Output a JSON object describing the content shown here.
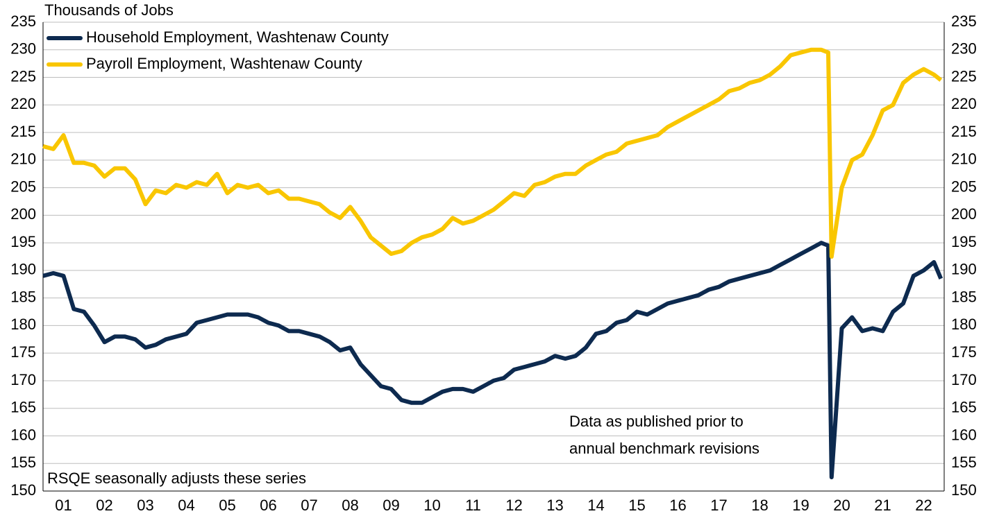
{
  "chart_data": {
    "type": "line",
    "y_label": "Thousands of Jobs",
    "annotations": [
      "RSQE seasonally adjusts these series",
      [
        "Data as published prior to",
        "annual benchmark revisions"
      ]
    ],
    "x": [
      2001.0,
      2001.25,
      2001.5,
      2001.75,
      2002.0,
      2002.25,
      2002.5,
      2002.75,
      2003.0,
      2003.25,
      2003.5,
      2003.75,
      2004.0,
      2004.25,
      2004.5,
      2004.75,
      2005.0,
      2005.25,
      2005.5,
      2005.75,
      2006.0,
      2006.25,
      2006.5,
      2006.75,
      2007.0,
      2007.25,
      2007.5,
      2007.75,
      2008.0,
      2008.25,
      2008.5,
      2008.75,
      2009.0,
      2009.25,
      2009.5,
      2009.75,
      2010.0,
      2010.25,
      2010.5,
      2010.75,
      2011.0,
      2011.25,
      2011.5,
      2011.75,
      2012.0,
      2012.25,
      2012.5,
      2012.75,
      2013.0,
      2013.25,
      2013.5,
      2013.75,
      2014.0,
      2014.25,
      2014.5,
      2014.75,
      2015.0,
      2015.25,
      2015.5,
      2015.75,
      2016.0,
      2016.25,
      2016.5,
      2016.75,
      2017.0,
      2017.25,
      2017.5,
      2017.75,
      2018.0,
      2018.25,
      2018.5,
      2018.75,
      2019.0,
      2019.25,
      2019.5,
      2019.75,
      2020.0,
      2020.17,
      2020.25,
      2020.5,
      2020.75,
      2021.0,
      2021.25,
      2021.5,
      2021.75,
      2022.0,
      2022.25,
      2022.5,
      2022.75,
      2022.92
    ],
    "series": [
      {
        "name": "Household Employment, Washtenaw County",
        "color": "#0d2a4f",
        "values": [
          189,
          189.5,
          189,
          183,
          182.5,
          180,
          177,
          178,
          178,
          177.5,
          176,
          176.5,
          177.5,
          178,
          178.5,
          180.5,
          181,
          181.5,
          182,
          182,
          182,
          181.5,
          180.5,
          180,
          179,
          179,
          178.5,
          178,
          177,
          175.5,
          176,
          173,
          171,
          169,
          168.5,
          166.5,
          166,
          166,
          167,
          168,
          168.5,
          168.5,
          168,
          169,
          170,
          170.5,
          172,
          172.5,
          173,
          173.5,
          174.5,
          174,
          174.5,
          176,
          178.5,
          179,
          180.5,
          181,
          182.5,
          182,
          183,
          184,
          184.5,
          185,
          185.5,
          186.5,
          187,
          188,
          188.5,
          189,
          189.5,
          190,
          191,
          192,
          193,
          194,
          195,
          194.5,
          152.5,
          179.5,
          181.5,
          179,
          179.5,
          179,
          182.5,
          184,
          189,
          190,
          191.5,
          188.5
        ]
      },
      {
        "name": "Payroll Employment, Washtenaw County",
        "color": "#f9c600",
        "values": [
          212.5,
          212,
          214.5,
          209.5,
          209.5,
          209,
          207,
          208.5,
          208.5,
          206.5,
          202,
          204.5,
          204,
          205.5,
          205,
          206,
          205.5,
          207.5,
          204,
          205.5,
          205,
          205.5,
          204,
          204.5,
          203,
          203,
          202.5,
          202,
          200.5,
          199.5,
          201.5,
          199,
          196,
          194.5,
          193,
          193.5,
          195,
          196,
          196.5,
          197.5,
          199.5,
          198.5,
          199,
          200,
          201,
          202.5,
          204,
          203.5,
          205.5,
          206,
          207,
          207.5,
          207.5,
          209,
          210,
          211,
          211.5,
          213,
          213.5,
          214,
          214.5,
          216,
          217,
          218,
          219,
          220,
          221,
          222.5,
          223,
          224,
          224.5,
          225.5,
          227,
          229,
          229.5,
          230,
          230,
          229.5,
          192.5,
          205,
          210,
          211,
          214.5,
          219,
          220,
          224,
          225.5,
          226.5,
          225.5,
          224.5
        ]
      }
    ],
    "xlim": [
      2001,
      2023
    ],
    "xticks": [
      {
        "value": 2001.5,
        "label": "01"
      },
      {
        "value": 2002.5,
        "label": "02"
      },
      {
        "value": 2003.5,
        "label": "03"
      },
      {
        "value": 2004.5,
        "label": "04"
      },
      {
        "value": 2005.5,
        "label": "05"
      },
      {
        "value": 2006.5,
        "label": "06"
      },
      {
        "value": 2007.5,
        "label": "07"
      },
      {
        "value": 2008.5,
        "label": "08"
      },
      {
        "value": 2009.5,
        "label": "09"
      },
      {
        "value": 2010.5,
        "label": "10"
      },
      {
        "value": 2011.5,
        "label": "11"
      },
      {
        "value": 2012.5,
        "label": "12"
      },
      {
        "value": 2013.5,
        "label": "13"
      },
      {
        "value": 2014.5,
        "label": "14"
      },
      {
        "value": 2015.5,
        "label": "15"
      },
      {
        "value": 2016.5,
        "label": "16"
      },
      {
        "value": 2017.5,
        "label": "17"
      },
      {
        "value": 2018.5,
        "label": "18"
      },
      {
        "value": 2019.5,
        "label": "19"
      },
      {
        "value": 2020.5,
        "label": "20"
      },
      {
        "value": 2021.5,
        "label": "21"
      },
      {
        "value": 2022.5,
        "label": "22"
      }
    ],
    "ylim": [
      150,
      235
    ],
    "yticks": [
      150,
      155,
      160,
      165,
      170,
      175,
      180,
      185,
      190,
      195,
      200,
      205,
      210,
      215,
      220,
      225,
      230,
      235
    ],
    "y2lim": [
      150,
      235
    ],
    "y2ticks": [
      150,
      155,
      160,
      165,
      170,
      175,
      180,
      185,
      190,
      195,
      200,
      205,
      210,
      215,
      220,
      225,
      230,
      235
    ],
    "grid": true,
    "legend": "upper left"
  }
}
